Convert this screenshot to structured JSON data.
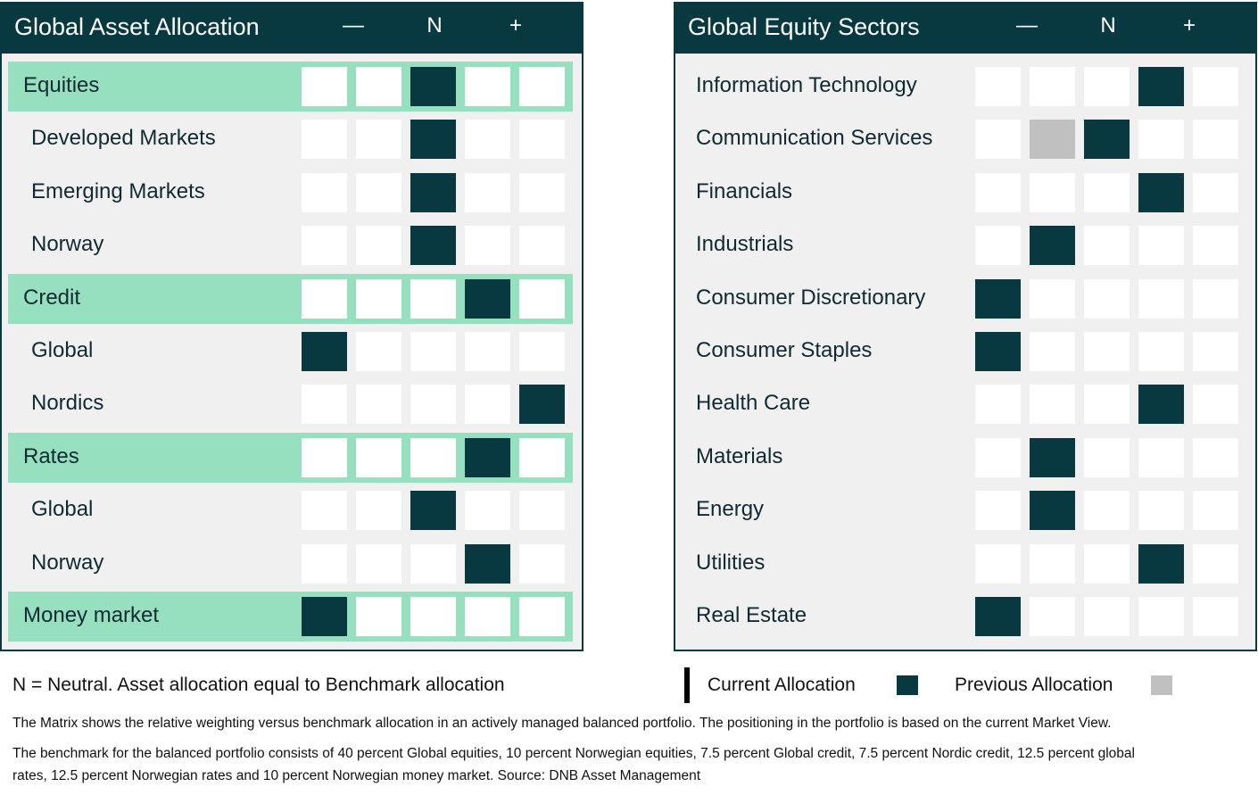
{
  "colors": {
    "header_bg": "#083840",
    "current": "#083840",
    "previous": "#c0c0c0",
    "highlight": "#97e0bf",
    "panel_bg": "#f0f0f0",
    "empty_cell": "#ffffff"
  },
  "scale_labels": [
    "—",
    "N",
    "+"
  ],
  "asset_allocation": {
    "title": "Global Asset Allocation",
    "rows": [
      {
        "label": "Equities",
        "highlight": true,
        "current": 3,
        "previous": null
      },
      {
        "label": "Developed Markets",
        "highlight": false,
        "current": 3,
        "previous": null
      },
      {
        "label": "Emerging Markets",
        "highlight": false,
        "current": 3,
        "previous": null
      },
      {
        "label": "Norway",
        "highlight": false,
        "current": 3,
        "previous": null
      },
      {
        "label": "Credit",
        "highlight": true,
        "current": 4,
        "previous": null
      },
      {
        "label": "Global",
        "highlight": false,
        "current": 1,
        "previous": null
      },
      {
        "label": "Nordics",
        "highlight": false,
        "current": 5,
        "previous": null
      },
      {
        "label": "Rates",
        "highlight": true,
        "current": 4,
        "previous": null
      },
      {
        "label": "Global",
        "highlight": false,
        "current": 3,
        "previous": null
      },
      {
        "label": "Norway",
        "highlight": false,
        "current": 4,
        "previous": null
      },
      {
        "label": "Money market",
        "highlight": true,
        "current": 1,
        "previous": null
      }
    ]
  },
  "equity_sectors": {
    "title": "Global Equity Sectors",
    "rows": [
      {
        "label": "Information Technology",
        "current": 4,
        "previous": null
      },
      {
        "label": "Communication Services",
        "current": 3,
        "previous": 2
      },
      {
        "label": "Financials",
        "current": 4,
        "previous": null
      },
      {
        "label": "Industrials",
        "current": 2,
        "previous": null
      },
      {
        "label": "Consumer Discretionary",
        "current": 1,
        "previous": null
      },
      {
        "label": "Consumer Staples",
        "current": 1,
        "previous": null
      },
      {
        "label": "Health Care",
        "current": 4,
        "previous": null
      },
      {
        "label": "Materials",
        "current": 2,
        "previous": null
      },
      {
        "label": "Energy",
        "current": 2,
        "previous": null
      },
      {
        "label": "Utilities",
        "current": 4,
        "previous": null
      },
      {
        "label": "Real Estate",
        "current": 1,
        "previous": null
      }
    ]
  },
  "chart_data": [
    {
      "type": "heatmap",
      "title": "Global Asset Allocation",
      "scale": [
        "—",
        "",
        "N",
        "",
        "+"
      ],
      "categories": [
        "Equities",
        "Developed Markets",
        "Emerging Markets",
        "Norway",
        "Credit",
        "Global",
        "Nordics",
        "Rates",
        "Global",
        "Norway",
        "Money market"
      ],
      "current_position": [
        3,
        3,
        3,
        3,
        4,
        1,
        5,
        4,
        3,
        4,
        1
      ]
    },
    {
      "type": "heatmap",
      "title": "Global Equity Sectors",
      "scale": [
        "—",
        "",
        "N",
        "",
        "+"
      ],
      "categories": [
        "Information Technology",
        "Communication Services",
        "Financials",
        "Industrials",
        "Consumer Discretionary",
        "Consumer Staples",
        "Health Care",
        "Materials",
        "Energy",
        "Utilities",
        "Real Estate"
      ],
      "current_position": [
        4,
        3,
        4,
        2,
        1,
        1,
        4,
        2,
        2,
        4,
        1
      ],
      "previous_position": [
        null,
        2,
        null,
        null,
        null,
        null,
        null,
        null,
        null,
        null,
        null
      ]
    }
  ],
  "footer": {
    "neutral_note": "N = Neutral. Asset allocation equal to Benchmark allocation",
    "legend_current": "Current Allocation",
    "legend_previous": "Previous Allocation",
    "note1": "The Matrix shows the relative weighting versus benchmark allocation in an actively managed balanced portfolio. The positioning in the portfolio is based on the current Market View.",
    "note2_line1": "The benchmark for the balanced portfolio consists of 40 percent Global equities, 10 percent Norwegian equities, 7.5 percent Global credit, 7.5 percent Nordic credit, 12.5 percent global",
    "note2_line2": "rates, 12.5 percent Norwegian rates and 10 percent Norwegian money market. Source: DNB Asset Management"
  }
}
